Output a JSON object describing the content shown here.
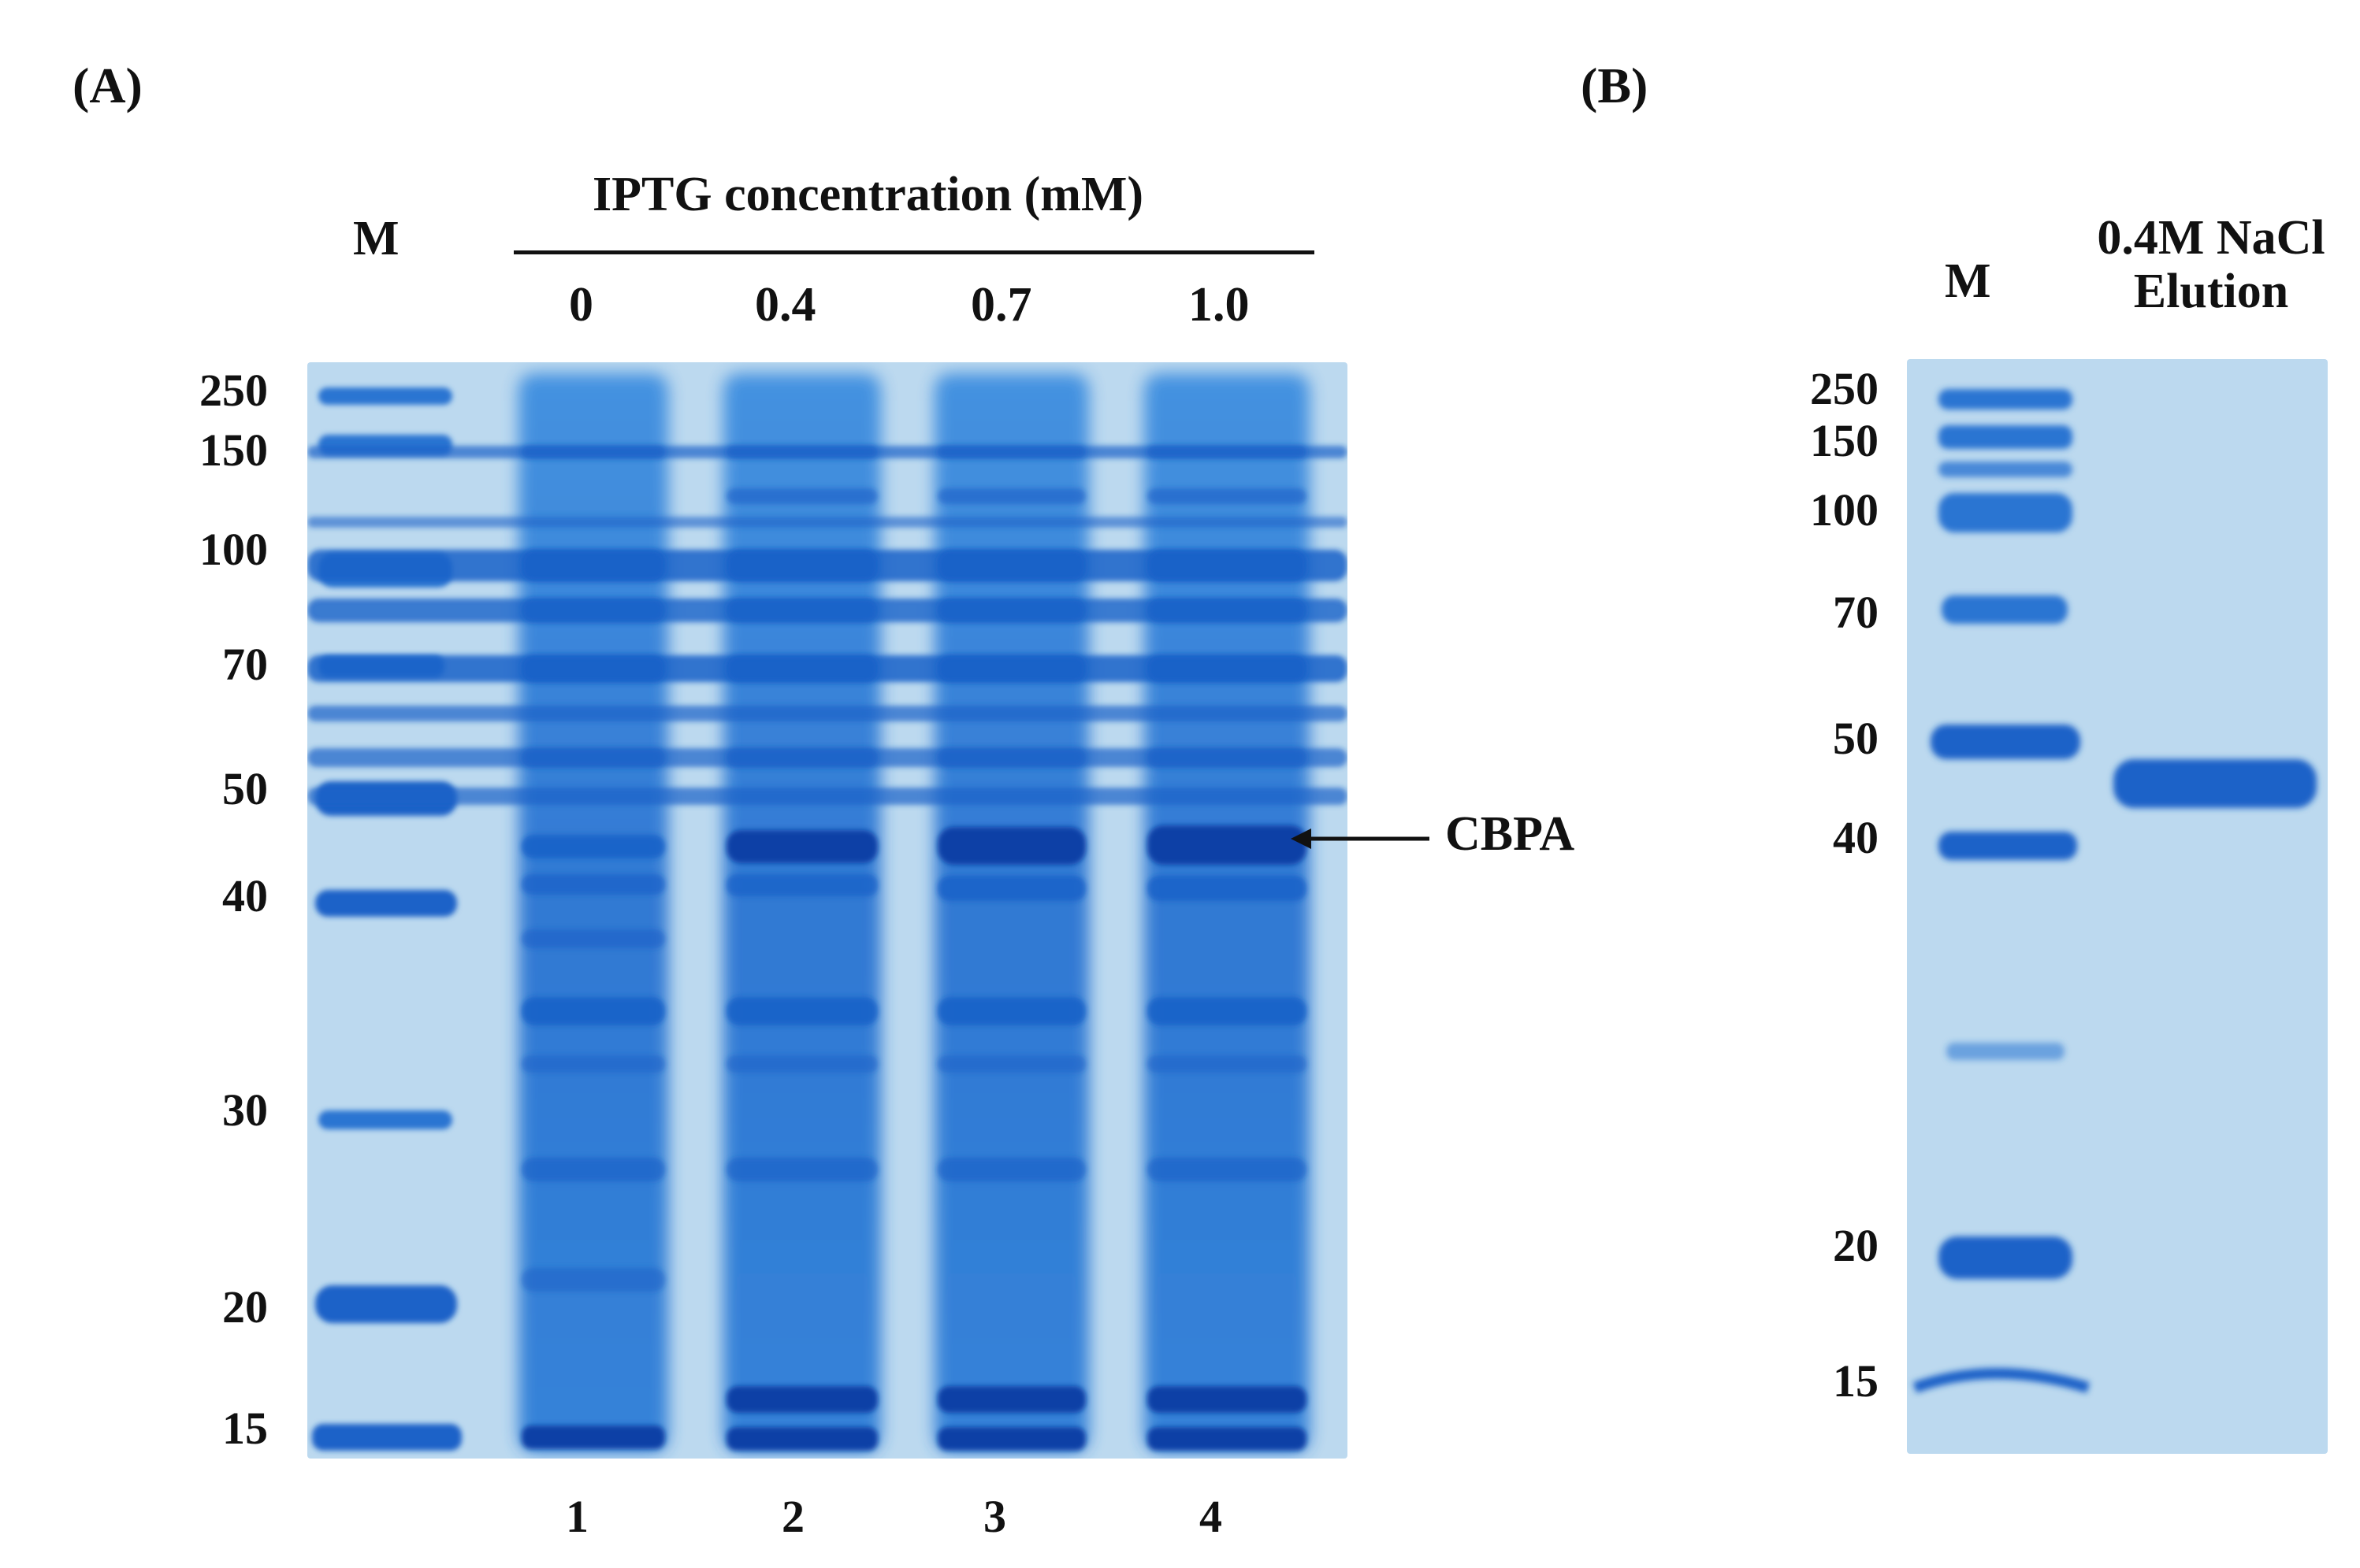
{
  "panel_a": {
    "label": "(A)",
    "marker_label": "M",
    "condition_title": "IPTG concentration (mM)",
    "concentrations": [
      "0",
      "0.4",
      "0.7",
      "1.0"
    ],
    "lane_numbers": [
      "1",
      "2",
      "3",
      "4"
    ],
    "mw_markers": [
      "250",
      "150",
      "100",
      "70",
      "50",
      "40",
      "30",
      "20",
      "15"
    ],
    "annotation": "CBPA"
  },
  "panel_b": {
    "label": "(B)",
    "marker_label": "M",
    "sample_label_line1": "0.4M NaCl",
    "sample_label_line2": "Elution",
    "mw_markers": [
      "250",
      "150",
      "100",
      "70",
      "50",
      "40",
      "20",
      "15"
    ]
  },
  "colors": {
    "gel_background": "#bcd9ef",
    "band": "#1b62c8",
    "band_dark": "#0d3fa6",
    "text": "#111111"
  }
}
